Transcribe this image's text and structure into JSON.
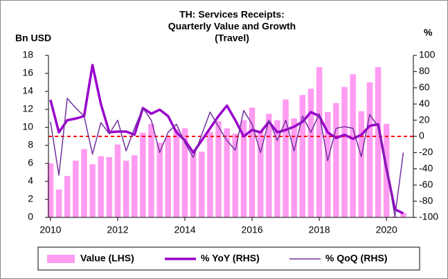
{
  "chart_data": {
    "type": "bar",
    "title": [
      "TH: Services Receipts:",
      "Quarterly Value and Growth",
      "(Travel)"
    ],
    "y_label": "Bn USD",
    "y2_label": "%",
    "x": [
      2010,
      2010.25,
      2010.5,
      2010.75,
      2011,
      2011.25,
      2011.5,
      2011.75,
      2012,
      2012.25,
      2012.5,
      2012.75,
      2013,
      2013.25,
      2013.5,
      2013.75,
      2014,
      2014.25,
      2014.5,
      2014.75,
      2015,
      2015.25,
      2015.5,
      2015.75,
      2016,
      2016.25,
      2016.5,
      2016.75,
      2017,
      2017.25,
      2017.5,
      2017.75,
      2018,
      2018.25,
      2018.5,
      2018.75,
      2019,
      2019.25,
      2019.5,
      2019.75,
      2020,
      2020.25,
      2020.5
    ],
    "xlim": [
      2009.94,
      2020.8
    ],
    "xticks": [
      2010,
      2012,
      2014,
      2016,
      2018,
      2020
    ],
    "ylim": [
      0,
      18
    ],
    "yticks": [
      0,
      2,
      4,
      6,
      8,
      10,
      12,
      14,
      16,
      18
    ],
    "y2lim": [
      -100,
      100
    ],
    "y2ticks": [
      -100,
      -80,
      -60,
      -40,
      -20,
      0,
      20,
      40,
      60,
      80,
      100
    ],
    "reference_line": {
      "axis": "y2",
      "value": 0,
      "color": "#ff0000"
    },
    "series": [
      {
        "name": "Value (LHS)",
        "type": "bar",
        "color": "#ff9cf2",
        "values": [
          6.0,
          3.1,
          4.6,
          6.3,
          7.6,
          5.9,
          6.8,
          6.7,
          8.1,
          6.3,
          6.9,
          9.4,
          10.4,
          8.3,
          8.9,
          9.8,
          9.9,
          7.2,
          7.3,
          9.5,
          10.7,
          9.9,
          9.3,
          10.8,
          12.2,
          9.6,
          11.5,
          10.8,
          13.1,
          11.0,
          13.6,
          14.3,
          16.7,
          11.7,
          12.7,
          14.5,
          15.9,
          11.8,
          15.0,
          16.7,
          10.4,
          0.1,
          0.5
        ]
      },
      {
        "name": "% YoY (RHS)",
        "type": "line",
        "axis": "y2",
        "color": "#9900cc",
        "values": [
          45,
          5,
          20,
          22,
          25,
          88,
          40,
          5,
          6,
          6,
          2,
          35,
          28,
          33,
          25,
          5,
          -5,
          -20,
          -5,
          10,
          25,
          38,
          20,
          0,
          8,
          5,
          18,
          5,
          8,
          12,
          18,
          30,
          25,
          5,
          -2,
          2,
          -3,
          2,
          13,
          15,
          -40,
          -90,
          -95
        ]
      },
      {
        "name": "% QoQ (RHS)",
        "type": "line",
        "axis": "y2",
        "color": "#7030a0",
        "values": [
          18,
          -48,
          47,
          35,
          25,
          -22,
          17,
          3,
          20,
          -18,
          10,
          35,
          20,
          -20,
          5,
          15,
          -8,
          -26,
          2,
          30,
          12,
          -5,
          -17,
          32,
          15,
          -20,
          20,
          -5,
          20,
          -18,
          25,
          5,
          28,
          -30,
          10,
          12,
          10,
          -25,
          27,
          12,
          -38,
          -99,
          -20
        ]
      }
    ],
    "legend": "bottom"
  }
}
